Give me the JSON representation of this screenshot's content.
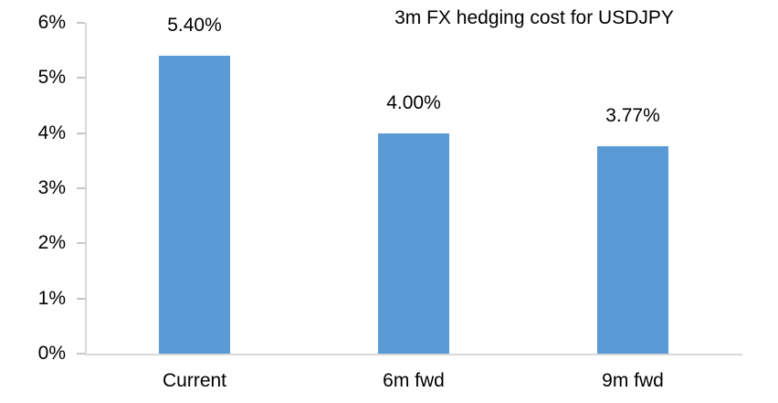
{
  "chart_data": {
    "type": "bar",
    "title": "3m FX hedging cost for USDJPY",
    "categories": [
      "Current",
      "6m fwd",
      "9m fwd"
    ],
    "values": [
      5.4,
      4.0,
      3.77
    ],
    "data_labels": [
      "5.40%",
      "4.00%",
      "3.77%"
    ],
    "ylabel": "",
    "xlabel": "",
    "ylim": [
      0,
      6
    ],
    "ytick_values": [
      0,
      1,
      2,
      3,
      4,
      5,
      6
    ],
    "ytick_labels": [
      "0%",
      "1%",
      "2%",
      "3%",
      "4%",
      "5%",
      "6%"
    ],
    "grid": false,
    "legend_position": "none",
    "colors": {
      "bar": "#5B9BD5",
      "axis_line": "#D9D9D9",
      "tick": "#C6C6C6",
      "text": "#000000",
      "background": "#FFFFFF"
    }
  }
}
